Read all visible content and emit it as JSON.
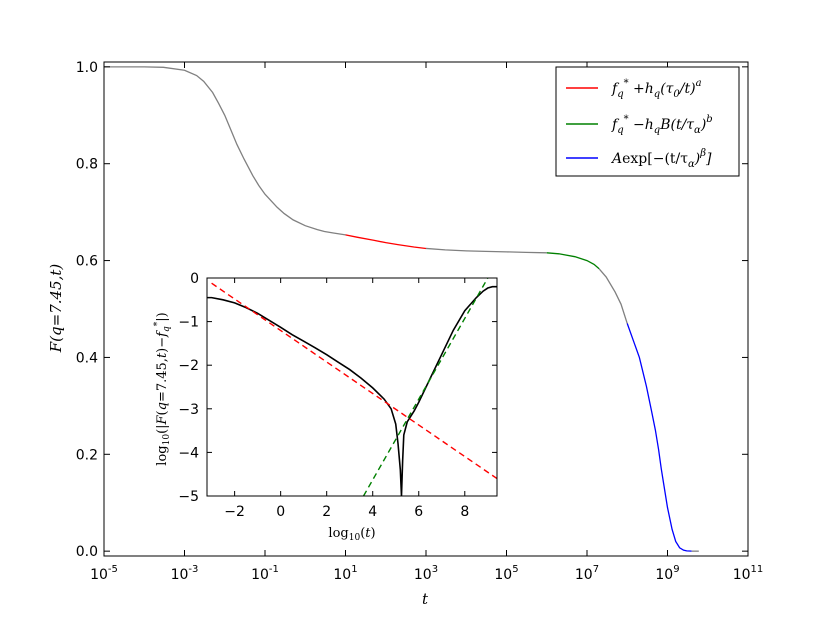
{
  "chart_data": [
    {
      "type": "line",
      "x_scale": "log",
      "xlabel": "t",
      "ylabel": "F(q=7.45,t)",
      "xlim": [
        1e-05,
        100000000000.0
      ],
      "ylim": [
        -0.01,
        1.01
      ],
      "x_ticks": [
        {
          "value": 1e-05,
          "base": "10",
          "exp": "-5"
        },
        {
          "value": 0.001,
          "base": "10",
          "exp": "-3"
        },
        {
          "value": 0.1,
          "base": "10",
          "exp": "-1"
        },
        {
          "value": 10,
          "base": "10",
          "exp": "1"
        },
        {
          "value": 1000,
          "base": "10",
          "exp": "3"
        },
        {
          "value": 100000,
          "base": "10",
          "exp": "5"
        },
        {
          "value": 10000000,
          "base": "10",
          "exp": "7"
        },
        {
          "value": 1000000000,
          "base": "10",
          "exp": "9"
        },
        {
          "value": 100000000000,
          "base": "10",
          "exp": "11"
        }
      ],
      "y_ticks": [
        "0.0",
        "0.2",
        "0.4",
        "0.6",
        "0.8",
        "1.0"
      ],
      "y_tick_values": [
        0.0,
        0.2,
        0.4,
        0.6,
        0.8,
        1.0
      ],
      "series": [
        {
          "color": "#808080",
          "x": [
            1e-05,
            0.0001,
            0.0003,
            0.001,
            0.002,
            0.003,
            0.005,
            0.007,
            0.01,
            0.015,
            0.02,
            0.03,
            0.05,
            0.07,
            0.1,
            0.2,
            0.3,
            0.5,
            1,
            2,
            3,
            5,
            10
          ],
          "y": [
            1.0,
            1.0,
            0.999,
            0.993,
            0.982,
            0.97,
            0.947,
            0.925,
            0.9,
            0.865,
            0.84,
            0.81,
            0.775,
            0.755,
            0.737,
            0.71,
            0.697,
            0.684,
            0.672,
            0.664,
            0.66,
            0.657,
            0.653
          ]
        },
        {
          "name": "f_q^* + h_q(τ_0/t)^a",
          "color": "#ff0000",
          "x": [
            10,
            20,
            50,
            100,
            200,
            500,
            1000
          ],
          "y": [
            0.653,
            0.648,
            0.642,
            0.637,
            0.633,
            0.628,
            0.625
          ]
        },
        {
          "color": "#808080",
          "x": [
            1000,
            3000,
            10000,
            30000,
            100000,
            300000,
            1000000
          ],
          "y": [
            0.625,
            0.622,
            0.62,
            0.619,
            0.618,
            0.617,
            0.616
          ]
        },
        {
          "name": "f_q^* − h_q B(t/τ_α)^b",
          "color": "#008000",
          "x": [
            1000000,
            2000000,
            5000000,
            10000000,
            15000000,
            20000000
          ],
          "y": [
            0.616,
            0.614,
            0.608,
            0.6,
            0.592,
            0.583
          ]
        },
        {
          "color": "#808080",
          "x": [
            20000000,
            30000000,
            50000000,
            70000000,
            100000000
          ],
          "y": [
            0.583,
            0.566,
            0.535,
            0.51,
            0.47
          ]
        },
        {
          "name": "A exp[−(t/τ_α)^β]",
          "color": "#0000ff",
          "x": [
            100000000,
            200000000,
            300000000,
            400000000,
            500000000,
            600000000,
            700000000,
            800000000,
            1000000000,
            1300000000,
            1600000000,
            2000000000,
            2500000000,
            3000000000,
            4000000000
          ],
          "y": [
            0.47,
            0.4,
            0.34,
            0.29,
            0.25,
            0.21,
            0.17,
            0.14,
            0.09,
            0.045,
            0.02,
            0.007,
            0.002,
            0.0005,
            0.0
          ]
        },
        {
          "color": "#808080",
          "x": [
            4000000000,
            6000000000
          ],
          "y": [
            0.0,
            0.0
          ]
        }
      ],
      "legend": {
        "position": "top-right",
        "entries": [
          {
            "color": "#ff0000",
            "parts": [
              "f",
              "q",
              "*",
              " +h",
              "q",
              "(τ",
              "0",
              "/t)",
              "a"
            ]
          },
          {
            "color": "#008000",
            "parts": [
              "f",
              "q",
              "*",
              " −h",
              "q",
              "B(t/τ",
              "α",
              ")",
              "b"
            ]
          },
          {
            "color": "#0000ff",
            "parts": [
              "A",
              "exp[−(t/τ",
              "α",
              ")",
              "β",
              "]"
            ]
          }
        ]
      }
    },
    {
      "type": "line",
      "inset": true,
      "xlabel": "log10(t)",
      "ylabel": "log10(|F(q=7.45,t) − f_q^*|)",
      "xlim": [
        -3.2,
        9.4
      ],
      "ylim": [
        -5,
        0
      ],
      "x_ticks": [
        "−2",
        "0",
        "2",
        "4",
        "6",
        "8"
      ],
      "x_tick_values": [
        -2,
        0,
        2,
        4,
        6,
        8
      ],
      "y_ticks": [
        "0",
        "−1",
        "−2",
        "−3",
        "−4",
        "−5"
      ],
      "y_tick_values": [
        0,
        -1,
        -2,
        -3,
        -4,
        -5
      ],
      "series": [
        {
          "color": "#000000",
          "style": "solid",
          "x": [
            -3.2,
            -3.0,
            -2.5,
            -2.0,
            -1.5,
            -1.0,
            -0.5,
            0.0,
            0.5,
            1.0,
            1.5,
            2.0,
            2.5,
            3.0,
            3.5,
            4.0,
            4.5,
            4.8,
            5.0,
            5.1,
            5.2,
            5.25,
            5.3,
            5.35,
            5.5,
            5.8,
            6.0,
            6.5,
            7.0,
            7.5,
            8.0,
            8.5,
            8.8,
            9.0,
            9.2,
            9.4
          ],
          "y": [
            -0.45,
            -0.45,
            -0.5,
            -0.57,
            -0.68,
            -0.81,
            -0.97,
            -1.13,
            -1.3,
            -1.45,
            -1.6,
            -1.76,
            -1.93,
            -2.1,
            -2.3,
            -2.52,
            -2.78,
            -3.0,
            -3.35,
            -3.8,
            -4.4,
            -5.0,
            -4.2,
            -3.6,
            -3.3,
            -3.05,
            -2.85,
            -2.3,
            -1.75,
            -1.2,
            -0.75,
            -0.45,
            -0.3,
            -0.23,
            -0.2,
            -0.2
          ]
        },
        {
          "color": "#ff0000",
          "style": "dashed",
          "x": [
            -3.0,
            9.4
          ],
          "y": [
            -0.12,
            -4.6
          ]
        },
        {
          "color": "#008000",
          "style": "dashed",
          "x": [
            3.6,
            9.0
          ],
          "y": [
            -5.0,
            0.0
          ]
        }
      ]
    }
  ]
}
